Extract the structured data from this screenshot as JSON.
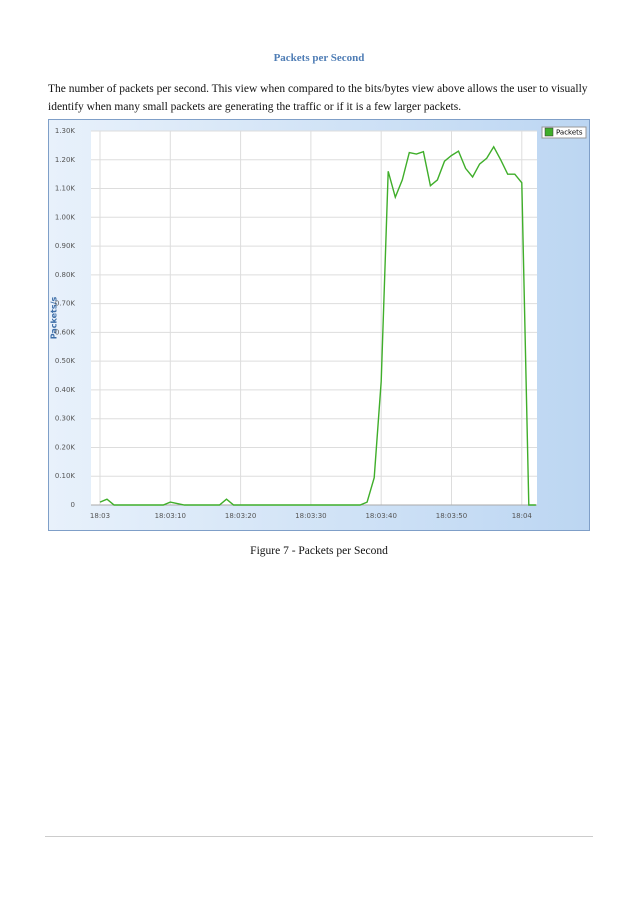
{
  "heading": "Packets per Second",
  "paragraph": "The number of packets per second. This view when compared to the bits/bytes view above allows the user to visually identify when many small packets are generating the traffic or if it is a few larger packets.",
  "caption": "Figure 7 - Packets per Second",
  "chart_data": {
    "type": "line",
    "y_label": "Packets/s",
    "categories": [
      "18:03",
      null,
      null,
      null,
      null,
      null,
      null,
      null,
      null,
      null,
      "18:03:10",
      null,
      null,
      null,
      null,
      null,
      null,
      null,
      null,
      null,
      "18:03:20",
      null,
      null,
      null,
      null,
      null,
      null,
      null,
      null,
      null,
      "18:03:30",
      null,
      null,
      null,
      null,
      null,
      null,
      null,
      null,
      null,
      "18:03:40",
      null,
      null,
      null,
      null,
      null,
      null,
      null,
      null,
      null,
      "18:03:50",
      null,
      null,
      null,
      null,
      null,
      null,
      null,
      null,
      null,
      "18:04",
      null,
      null
    ],
    "series": [
      {
        "name": "Packets",
        "color": "#3fae2a",
        "values": [
          10,
          20,
          0,
          0,
          0,
          0,
          0,
          0,
          0,
          0,
          10,
          5,
          0,
          0,
          0,
          0,
          0,
          0,
          20,
          0,
          0,
          0,
          0,
          0,
          0,
          0,
          0,
          0,
          0,
          0,
          0,
          0,
          0,
          0,
          0,
          0,
          0,
          0,
          10,
          95,
          430,
          1160,
          1070,
          1130,
          1225,
          1220,
          1228,
          1110,
          1130,
          1195,
          1215,
          1230,
          1170,
          1140,
          1185,
          1205,
          1245,
          1200,
          1150,
          1150,
          1120,
          0,
          0
        ]
      }
    ],
    "ylim": [
      0,
      1300
    ],
    "yticks": [
      0,
      {
        "value": 100,
        "label": "0.10K"
      },
      {
        "value": 200,
        "label": "0.20K"
      },
      {
        "value": 300,
        "label": "0.30K"
      },
      {
        "value": 400,
        "label": "0.40K"
      },
      {
        "value": 500,
        "label": "0.50K"
      },
      {
        "value": 600,
        "label": "0.60K"
      },
      {
        "value": 700,
        "label": "0.70K"
      },
      {
        "value": 800,
        "label": "0.80K"
      },
      {
        "value": 900,
        "label": "0.90K"
      },
      {
        "value": 1000,
        "label": "1.00K"
      },
      {
        "value": 1100,
        "label": "1.10K"
      },
      {
        "value": 1200,
        "label": "1.20K"
      },
      {
        "value": 1300,
        "label": "1.30K"
      }
    ],
    "grid": true,
    "legend": "top-right"
  }
}
